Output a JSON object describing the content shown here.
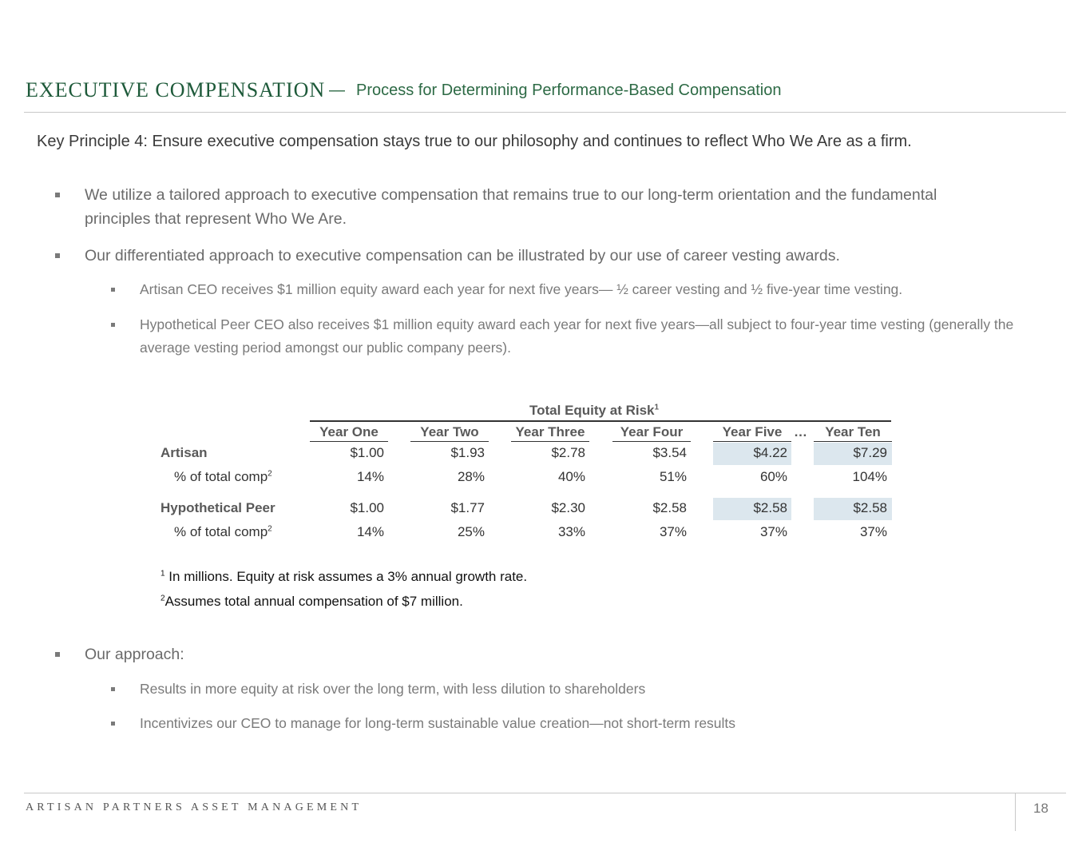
{
  "header": {
    "title": "EXECUTIVE COMPENSATION",
    "dash": "—",
    "subtitle": "Process for Determining Performance-Based Compensation"
  },
  "key_principle": "Key Principle 4:  Ensure executive compensation stays true to our philosophy and continues to reflect Who We Are as a firm.",
  "bullets": [
    {
      "text": "We utilize a tailored approach to executive compensation that remains true to our long-term orientation and the fundamental principles that represent Who We Are."
    },
    {
      "text": "Our differentiated approach to executive compensation can be illustrated by our use of career vesting awards.",
      "sub": [
        "Artisan CEO receives $1 million equity award each year for next five years— ½ career vesting and ½ five-year time vesting.",
        "Hypothetical Peer CEO also receives $1 million equity award each year for next five years—all subject to four-year time vesting (generally the average vesting period amongst our public company peers)."
      ]
    },
    {
      "text": "Our approach:",
      "sub": [
        "Results in more equity at risk over the long term, with less dilution to shareholders",
        "Incentivizes our CEO to manage for long-term sustainable value creation—not short-term results"
      ]
    }
  ],
  "table": {
    "title": "Total Equity at Risk",
    "title_sup": "1",
    "columns": [
      "Year One",
      "Year Two",
      "Year Three",
      "Year Four",
      "Year Five",
      "Year Ten"
    ],
    "ellipsis": "…",
    "rows": [
      {
        "label": "Artisan",
        "values": [
          "$1.00",
          "$1.93",
          "$2.78",
          "$3.54",
          "$4.22",
          "$7.29"
        ]
      },
      {
        "label": "% of total comp",
        "sup": "2",
        "values": [
          "14%",
          "28%",
          "40%",
          "51%",
          "60%",
          "104%"
        ]
      },
      {
        "label": "Hypothetical Peer",
        "values": [
          "$1.00",
          "$1.77",
          "$2.30",
          "$2.58",
          "$2.58",
          "$2.58"
        ]
      },
      {
        "label": "% of total comp",
        "sup": "2",
        "values": [
          "14%",
          "25%",
          "33%",
          "37%",
          "37%",
          "37%"
        ]
      }
    ],
    "highlight_color": "#dce7ee"
  },
  "footnotes": [
    {
      "mark": "1",
      "text": "In millions.  Equity at risk assumes a 3% annual growth rate."
    },
    {
      "mark": "2",
      "text": "Assumes total annual compensation of $7 million."
    }
  ],
  "footer": {
    "brand": "ARTISAN PARTNERS ASSET MANAGEMENT",
    "page": "18"
  }
}
